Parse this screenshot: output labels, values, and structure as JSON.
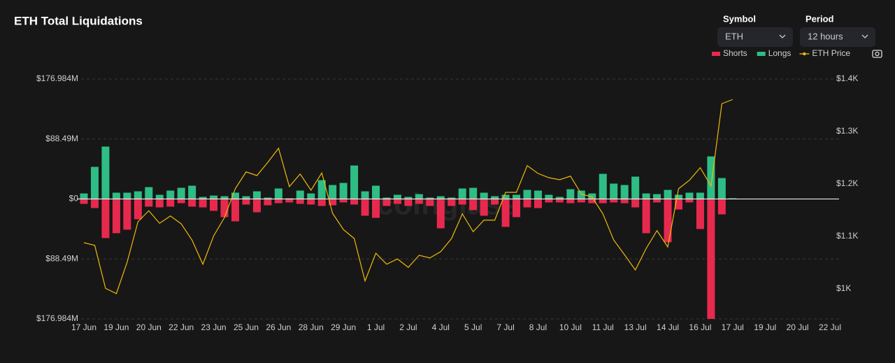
{
  "header": {
    "title": "ETH Total Liquidations"
  },
  "controls": {
    "symbol": {
      "label": "Symbol",
      "value": "ETH"
    },
    "period": {
      "label": "Period",
      "value": "12 hours"
    }
  },
  "watermark": "coinglass",
  "chart_data": {
    "type": "bar",
    "categories": [
      "17 Jun",
      null,
      null,
      "19 Jun",
      null,
      null,
      "20 Jun",
      null,
      null,
      "22 Jun",
      null,
      null,
      "23 Jun",
      null,
      null,
      "25 Jun",
      null,
      null,
      "26 Jun",
      null,
      null,
      "28 Jun",
      null,
      null,
      "29 Jun",
      null,
      null,
      "1 Jul",
      null,
      null,
      "2 Jul",
      null,
      null,
      "4 Jul",
      null,
      null,
      "5 Jul",
      null,
      null,
      "7 Jul",
      null,
      null,
      "8 Jul",
      null,
      null,
      "10 Jul",
      null,
      null,
      "11 Jul",
      null,
      null,
      "13 Jul",
      null,
      null,
      "14 Jul",
      null,
      null,
      "16 Jul",
      null,
      null,
      "17 Jul",
      null,
      null,
      "19 Jul",
      null,
      null,
      "20 Jul",
      null,
      null,
      "22 Jul"
    ],
    "series": [
      {
        "name": "Shorts",
        "color": "#e8294e",
        "values": [
          -7.2,
          -13.4,
          -57.7,
          -50.5,
          -45.3,
          -29.9,
          -11.3,
          -12.4,
          -11.3,
          -6.2,
          -11.3,
          -12.4,
          -17.5,
          -26.8,
          -33,
          -8.2,
          -19.6,
          -9.3,
          -6.2,
          -5.1,
          -7.2,
          -8.2,
          -10.3,
          -9.3,
          -5.1,
          -8.2,
          -24.7,
          -27.8,
          -10.3,
          -7.2,
          -10.3,
          -7.2,
          -10.3,
          -43.3,
          -10.3,
          -8.2,
          -16.5,
          -24.7,
          -8.2,
          -41.2,
          -26.8,
          -12.4,
          -13.4,
          -5.1,
          -5.1,
          -6.2,
          -5.1,
          -6.2,
          -6.2,
          -5.1,
          -6.2,
          -12.4,
          -50.5,
          -5.1,
          -63.8,
          -15.5,
          -5.1,
          -44.3,
          -176.9,
          -22.7,
          0,
          null,
          null,
          null,
          null,
          null,
          null,
          null,
          null,
          null
        ]
      },
      {
        "name": "Longs",
        "color": "#2ebd85",
        "values": [
          8.2,
          47.4,
          77.3,
          9.3,
          9.3,
          11.3,
          17.5,
          6.2,
          12.4,
          16.5,
          19.6,
          3.1,
          5.1,
          4.1,
          9.3,
          4.1,
          11.3,
          2.1,
          15.5,
          1,
          12.4,
          8.2,
          27.8,
          20.6,
          23.7,
          49.4,
          11.3,
          19.6,
          2.1,
          6.2,
          3.1,
          7.2,
          2.1,
          4.1,
          2.1,
          15.5,
          16.5,
          9.3,
          4.1,
          6.2,
          6.2,
          13.4,
          12.4,
          6.2,
          3.1,
          14.4,
          12.4,
          8.2,
          37.1,
          22.7,
          20.6,
          33,
          8.2,
          7.2,
          13.4,
          6.2,
          9.3,
          9.3,
          62.8,
          30.9,
          1,
          null,
          null,
          null,
          null,
          null,
          null,
          null,
          null,
          null
        ]
      },
      {
        "name": "ETH Price",
        "color": "#f0b90b",
        "type": "line",
        "axis": "y2",
        "values": [
          1088,
          1083,
          1001,
          991,
          1051,
          1128,
          1149,
          1125,
          1139,
          1124,
          1093,
          1047,
          1101,
          1136,
          1191,
          1223,
          1216,
          1241,
          1268,
          1195,
          1219,
          1188,
          1221,
          1144,
          1113,
          1096,
          1015,
          1068,
          1047,
          1057,
          1041,
          1064,
          1059,
          1071,
          1096,
          1143,
          1109,
          1131,
          1131,
          1184,
          1184,
          1235,
          1220,
          1212,
          1208,
          1215,
          1181,
          1175,
          1143,
          1093,
          1065,
          1036,
          1077,
          1111,
          1080,
          1191,
          1207,
          1231,
          1196,
          1353,
          1361,
          null,
          null,
          null,
          null,
          null,
          null,
          null,
          null,
          null
        ]
      }
    ],
    "ylim": [
      -176.984,
      176.984
    ],
    "yticks": [
      {
        "value": 176.984,
        "label": "$176.984M"
      },
      {
        "value": 88.49,
        "label": "$88.49M"
      },
      {
        "value": 0,
        "label": "$0"
      },
      {
        "value": -88.49,
        "label": "$88.49M"
      },
      {
        "value": -176.984,
        "label": "$176.984M"
      }
    ],
    "y2lim": [
      942.67,
      1400
    ],
    "y2ticks": [
      {
        "value": 1400,
        "label": "$1.4K"
      },
      {
        "value": 1300,
        "label": "$1.3K"
      },
      {
        "value": 1200,
        "label": "$1.2K"
      },
      {
        "value": 1100,
        "label": "$1.1K"
      },
      {
        "value": 1000,
        "label": "$1K"
      }
    ],
    "grid": true,
    "legend": "top-right"
  }
}
